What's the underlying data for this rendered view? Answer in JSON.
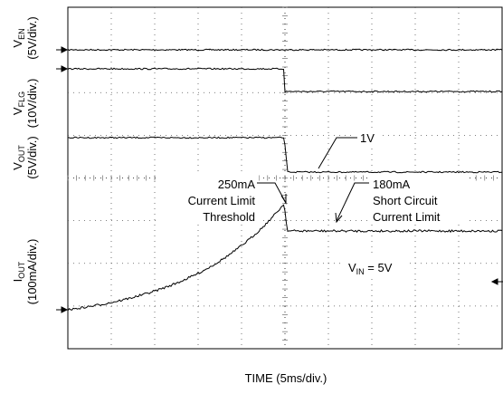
{
  "labels": {
    "ven": {
      "main": "V",
      "sub": "EN",
      "scale": "(5V/div.)"
    },
    "vflg": {
      "main": "V",
      "sub": "FLG",
      "scale": "(10V/div.)"
    },
    "vout": {
      "main": "V",
      "sub": "OUT",
      "scale": "(5V/div.)"
    },
    "iout": {
      "main": "I",
      "sub": "OUT",
      "scale": "(100mA/div.)"
    }
  },
  "annotations": {
    "vout_low": "1V",
    "threshold": [
      "250mA",
      "Current Limit",
      "Threshold"
    ],
    "short": [
      "180mA",
      "Short Circuit",
      "Current Limit"
    ],
    "vin": {
      "main": "V",
      "sub": "IN",
      "rest": " = 5V"
    }
  },
  "x_label": "TIME (5ms/div.)"
}
